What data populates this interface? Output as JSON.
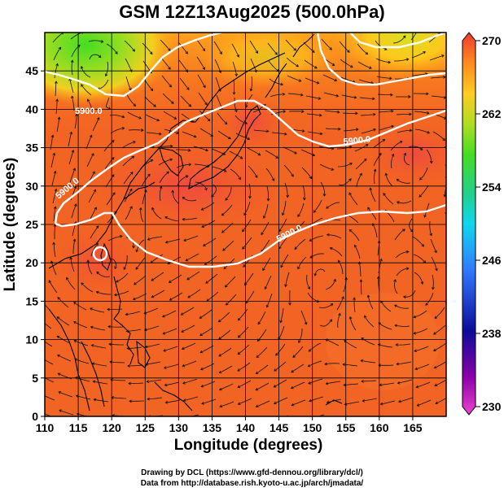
{
  "title": "GSM 12Z13Aug2025 (500.0hPa)",
  "chart_data": {
    "type": "heatmap",
    "xlabel": "Longitude (degrees)",
    "ylabel": "Latitude  (degrees)",
    "xlim": [
      110,
      170
    ],
    "ylim": [
      0,
      50
    ],
    "x_ticks": [
      "110",
      "115",
      "120",
      "125",
      "130",
      "135",
      "140",
      "145",
      "150",
      "155",
      "160",
      "165"
    ],
    "y_ticks": [
      "0",
      "5",
      "10",
      "15",
      "20",
      "25",
      "30",
      "35",
      "40",
      "45"
    ],
    "colorbar": {
      "min": 230,
      "max": 270,
      "tick_labels": [
        "270",
        "262",
        "254",
        "246",
        "238",
        "230"
      ]
    },
    "contour_labels": [
      "5900.0",
      "5900.0",
      "5900.0",
      "5900.0"
    ]
  },
  "credits": {
    "line1": "Drawing by DCL (https://www.gfd-dennou.org/library/dcl/)",
    "line2": "Data from http://database.rish.kyoto-u.ac.jp/arch/jmadata/"
  }
}
